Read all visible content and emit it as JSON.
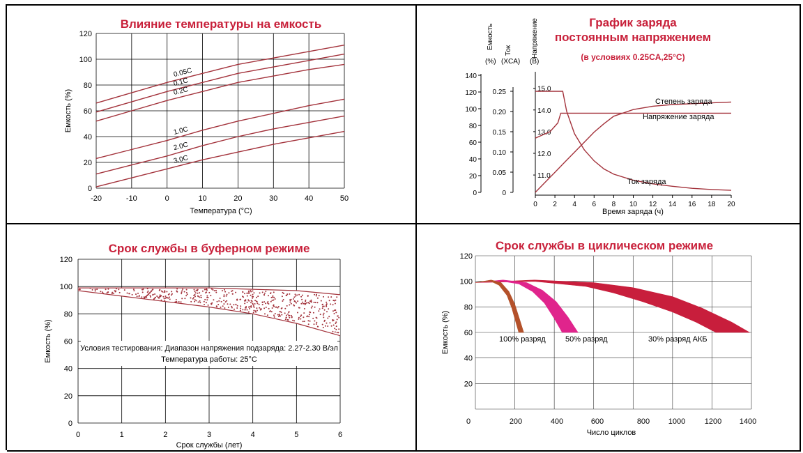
{
  "colors": {
    "curve": "#a3323b",
    "title": "#c8203a",
    "axis": "#000000",
    "grid": "#000000",
    "text": "#000000"
  },
  "chart_data": [
    {
      "id": "temp",
      "type": "line",
      "title": "Влияние температуры на емкость",
      "xlabel": "Температура (°C)",
      "ylabel": "Емкость (%)",
      "xlim": [
        -20,
        50
      ],
      "ylim": [
        0,
        120
      ],
      "x_ticks": [
        -20,
        -10,
        0,
        10,
        20,
        30,
        40,
        50
      ],
      "y_ticks": [
        0,
        20,
        40,
        60,
        80,
        100,
        120
      ],
      "grid": true,
      "x": [
        -20,
        -10,
        0,
        10,
        20,
        30,
        40,
        50
      ],
      "series": [
        {
          "name": "0.05C",
          "values": [
            66,
            74,
            82,
            89,
            96,
            101,
            106,
            111
          ]
        },
        {
          "name": "0.1C",
          "values": [
            59,
            67,
            75,
            82,
            89,
            94,
            99,
            104
          ]
        },
        {
          "name": "0.2C",
          "values": [
            52,
            60,
            68,
            75,
            82,
            87,
            92,
            96
          ]
        },
        {
          "name": "1.0C",
          "values": [
            23,
            30,
            37,
            45,
            52,
            58,
            64,
            69
          ]
        },
        {
          "name": "2.0C",
          "values": [
            11,
            18,
            25,
            33,
            40,
            46,
            51,
            56
          ]
        },
        {
          "name": "3.0C",
          "values": [
            1,
            8,
            15,
            22,
            28,
            34,
            39,
            44
          ]
        }
      ]
    },
    {
      "id": "charge",
      "type": "line",
      "title": "График заряда",
      "subtitle": "постоянным напряжением",
      "note": "(в условиях 0.25CA,25°C)",
      "xlabel": "Время заряда (ч)",
      "axis_labels": [
        "Емкость",
        "(%)",
        "Ток",
        "(XCA)",
        "Напряжение",
        "(B)"
      ],
      "xlim": [
        0,
        20
      ],
      "x_ticks": [
        0,
        2,
        4,
        6,
        8,
        10,
        12,
        14,
        16,
        18,
        20
      ],
      "capacity_ticks": [
        0,
        20,
        40,
        60,
        80,
        100,
        120,
        140
      ],
      "current_ticks": [
        "0",
        "0.05",
        "0.10",
        "0.15",
        "0.20",
        "0.25"
      ],
      "voltage_ticks": [
        "11.0",
        "12.0",
        "13.0",
        "14.0",
        "15.0"
      ],
      "capacity_range": [
        0,
        140
      ],
      "current_range": [
        0,
        0.3
      ],
      "voltage_range": [
        10.2,
        15.6
      ],
      "grid": false,
      "series": [
        {
          "name": "Степень заряда",
          "axis": "capacity",
          "x": [
            0,
            1,
            2,
            3,
            4,
            5,
            6,
            7,
            8,
            10,
            12,
            14,
            16,
            18,
            20
          ],
          "values": [
            0,
            12,
            24,
            36,
            48,
            60,
            72,
            82,
            91,
            99,
            103,
            105,
            106,
            107,
            108
          ]
        },
        {
          "name": "Напряжение заряда",
          "axis": "voltage",
          "x": [
            0,
            0.5,
            1.5,
            2.3,
            2.6,
            3.1,
            4,
            6,
            10,
            14,
            20
          ],
          "values": [
            12.7,
            12.8,
            13.0,
            13.4,
            13.85,
            13.85,
            13.85,
            13.85,
            13.85,
            13.85,
            13.85
          ]
        },
        {
          "name": "Ток заряда",
          "axis": "current",
          "x": [
            0,
            1,
            2,
            2.8,
            3.2,
            4,
            5,
            6,
            7,
            8,
            10,
            12,
            14,
            16,
            18,
            20
          ],
          "values": [
            0.25,
            0.25,
            0.25,
            0.25,
            0.2,
            0.145,
            0.105,
            0.078,
            0.058,
            0.045,
            0.03,
            0.021,
            0.015,
            0.01,
            0.007,
            0.005
          ]
        }
      ]
    },
    {
      "id": "float",
      "type": "area",
      "title": "Срок службы в буферном режиме",
      "xlabel": "Срок службы (лет)",
      "ylabel": "Емкость (%)",
      "xlim": [
        0,
        6
      ],
      "ylim": [
        0,
        120
      ],
      "x_ticks": [
        0,
        1,
        2,
        3,
        4,
        5,
        6
      ],
      "y_ticks": [
        0,
        20,
        40,
        60,
        80,
        100,
        120
      ],
      "grid": true,
      "annotation_line1": "Условия тестирования: Диапазон напряжения подзаряда: 2.27-2.30 В/эл",
      "annotation_line2": "Температура работы: 25°C",
      "x": [
        0,
        1,
        2,
        3,
        4,
        5,
        6
      ],
      "series": [
        {
          "name": "upper",
          "values": [
            99,
            99,
            99,
            99,
            98,
            97,
            94
          ]
        },
        {
          "name": "lower",
          "values": [
            97,
            93,
            89,
            85,
            80,
            73,
            64
          ]
        }
      ]
    },
    {
      "id": "cycle",
      "type": "area",
      "title": "Срок службы в циклическом режиме",
      "xlabel": "Число циклов",
      "ylabel": "Емкость (%)",
      "xlim": [
        0,
        1400
      ],
      "ylim": [
        0,
        120
      ],
      "x_ticks": [
        0,
        200,
        400,
        600,
        800,
        1000,
        1200,
        1400
      ],
      "y_ticks": [
        20,
        40,
        60,
        80,
        100,
        120
      ],
      "grid": true,
      "series": [
        {
          "name": "100% разряд",
          "color": "#b4512a",
          "upper": {
            "x": [
              0,
              80,
              130,
              170,
              200,
              225,
              245
            ],
            "y": [
              99,
              101,
              99,
              92,
              82,
              70,
              60
            ]
          },
          "lower": {
            "x": [
              0,
              80,
              120,
              160,
              185,
              205,
              220
            ],
            "y": [
              99,
              100,
              97,
              89,
              79,
              68,
              60
            ]
          }
        },
        {
          "name": "50% разряд",
          "color": "#e0248c",
          "upper": {
            "x": [
              0,
              140,
              260,
              340,
              410,
              470,
              520
            ],
            "y": [
              99,
              101,
              99,
              93,
              84,
              72,
              60
            ]
          },
          "lower": {
            "x": [
              0,
              140,
              220,
              290,
              350,
              400,
              440
            ],
            "y": [
              99,
              100,
              98,
              92,
              83,
              71,
              60
            ]
          }
        },
        {
          "name": "30% разряд АКБ",
          "color": "#c81e3c",
          "upper": {
            "x": [
              0,
              300,
              600,
              800,
              1000,
              1150,
              1300,
              1390
            ],
            "y": [
              99,
              101,
              99,
              95,
              88,
              79,
              68,
              60
            ]
          },
          "lower": {
            "x": [
              0,
              300,
              560,
              700,
              850,
              1000,
              1120,
              1220
            ],
            "y": [
              99,
              100,
              96,
              91,
              84,
              76,
              68,
              60
            ]
          }
        }
      ]
    }
  ]
}
